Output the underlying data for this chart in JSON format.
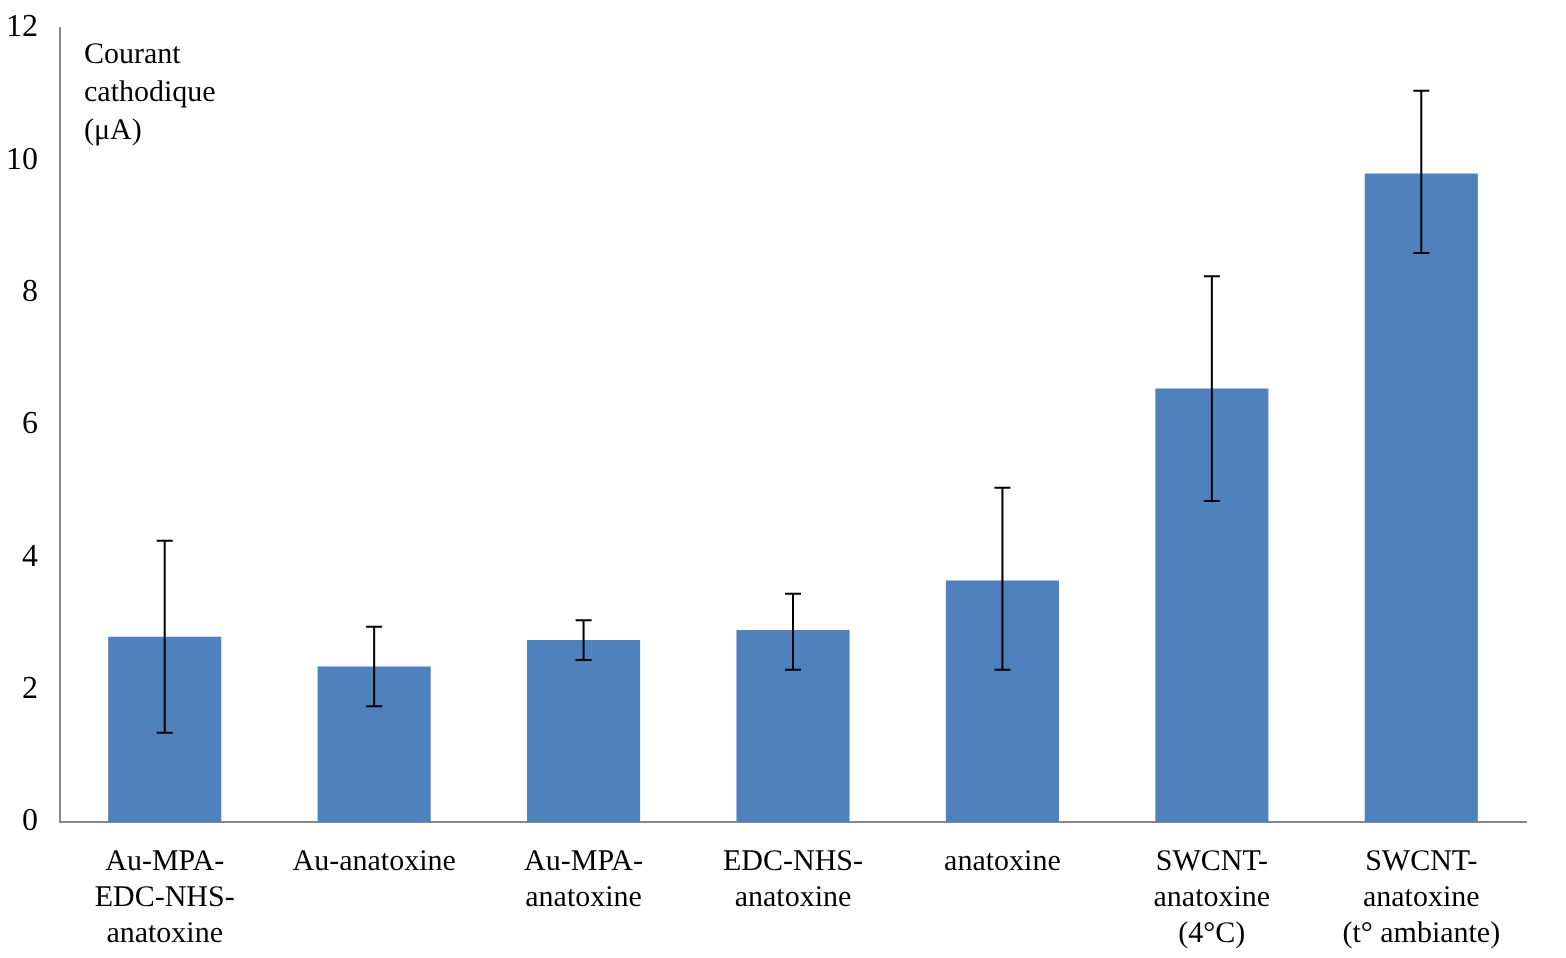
{
  "chart_data": {
    "type": "bar",
    "ylabel": "Courant\ncathodique\n(μA)",
    "categories": [
      "Au-MPA-\nEDC-NHS-\nanatoxine",
      "Au-anatoxine",
      "Au-MPA-\nanatoxine",
      "EDC-NHS-\nanatoxine",
      "anatoxine",
      "SWCNT-\nanatoxine\n(4°C)",
      "SWCNT-\nanatoxine\n(t° ambiante)"
    ],
    "values": [
      2.8,
      2.35,
      2.75,
      2.9,
      3.65,
      6.55,
      9.8
    ],
    "errors": [
      [
        1.35,
        4.25
      ],
      [
        1.75,
        2.95
      ],
      [
        2.45,
        3.05
      ],
      [
        2.3,
        3.45
      ],
      [
        2.3,
        5.05
      ],
      [
        4.85,
        8.25
      ],
      [
        8.6,
        11.05
      ]
    ],
    "color": "#4f81bd",
    "ylim": [
      0,
      12
    ],
    "yticks": [
      0,
      2,
      4,
      6,
      8,
      10,
      12
    ],
    "grid": false,
    "legend": false
  }
}
